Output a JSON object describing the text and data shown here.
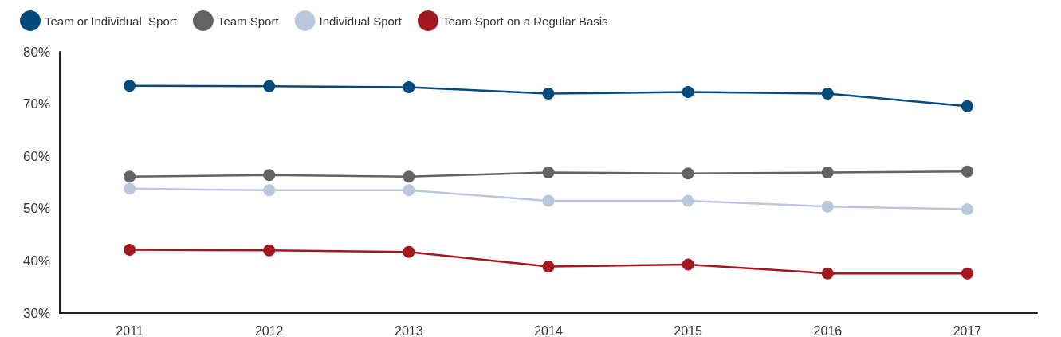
{
  "chart_data": {
    "type": "line",
    "categories": [
      "2011",
      "2012",
      "2013",
      "2014",
      "2015",
      "2016",
      "2017"
    ],
    "series": [
      {
        "name": "Team or Individual  Sport",
        "color": "#004a7c",
        "values": [
          73.5,
          73.4,
          73.2,
          72.0,
          72.3,
          72.0,
          69.6
        ]
      },
      {
        "name": "Team Sport",
        "color": "#636363",
        "values": [
          56.1,
          56.4,
          56.1,
          56.9,
          56.7,
          56.9,
          57.1
        ]
      },
      {
        "name": "Individual Sport",
        "color": "#b9c8dd",
        "values": [
          53.8,
          53.5,
          53.5,
          51.5,
          51.5,
          50.4,
          49.9
        ]
      },
      {
        "name": "Team Sport on a Regular Basis",
        "color": "#a3181f",
        "values": [
          42.1,
          42.0,
          41.7,
          38.9,
          39.3,
          37.6,
          37.6
        ]
      }
    ],
    "ylim": [
      30,
      80
    ],
    "yticks": [
      {
        "value": 30,
        "label": "30%"
      },
      {
        "value": 40,
        "label": "40%"
      },
      {
        "value": 50,
        "label": "50%"
      },
      {
        "value": 60,
        "label": "60%"
      },
      {
        "value": 70,
        "label": "70%"
      },
      {
        "value": 80,
        "label": "80%"
      }
    ],
    "grid": false,
    "legend": "top left",
    "marker": "circle",
    "line_style": "solid"
  }
}
